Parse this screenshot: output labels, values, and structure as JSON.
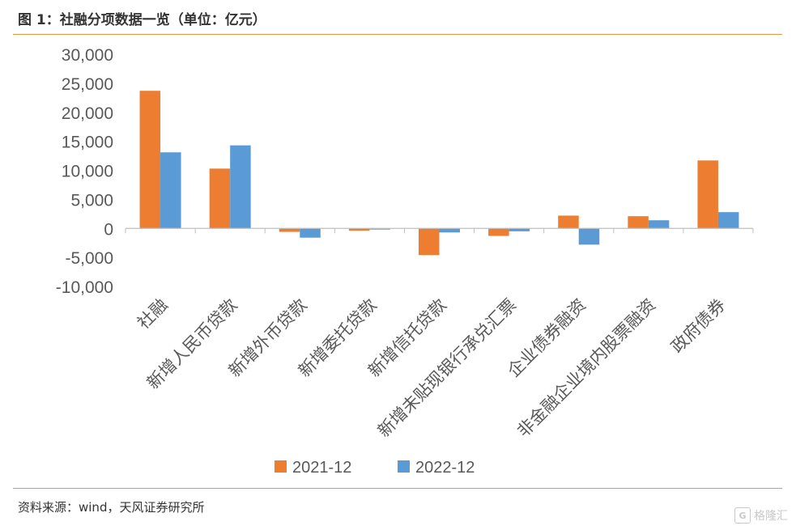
{
  "header": {
    "title": "图 1：社融分项数据一览（单位：亿元）"
  },
  "footer": {
    "source": "资料来源：wind，天风证券研究所"
  },
  "watermark": {
    "icon": "gelonghui-logo",
    "text": "格隆汇"
  },
  "colors": {
    "series_2021": "#ed7d31",
    "series_2022": "#5b9bd5",
    "axis": "#bfbfbf",
    "tick_text": "#595959",
    "rule": "#d99a4a"
  },
  "chart_data": {
    "type": "bar",
    "title": "",
    "xlabel": "",
    "ylabel": "",
    "ylim": [
      -10000,
      30000
    ],
    "yticks": [
      30000,
      25000,
      20000,
      15000,
      10000,
      5000,
      0,
      -5000,
      -10000
    ],
    "ytick_labels": [
      "30,000",
      "25,000",
      "20,000",
      "15,000",
      "10,000",
      "5,000",
      "0",
      "-5,000",
      "-10,000"
    ],
    "grid": false,
    "legend_position": "bottom",
    "categories": [
      "社融",
      "新增人民币贷款",
      "新增外币贷款",
      "新增委托贷款",
      "新增信托贷款",
      "新增未贴现银行承兑汇票",
      "企业债券融资",
      "非金融企业境内股票融资",
      "政府债券"
    ],
    "series": [
      {
        "name": "2021-12",
        "values": [
          23700,
          10300,
          -600,
          -400,
          -4600,
          -1300,
          2200,
          2100,
          11700
        ]
      },
      {
        "name": "2022-12",
        "values": [
          13100,
          14300,
          -1600,
          -200,
          -700,
          -500,
          -2800,
          1400,
          2800
        ]
      }
    ]
  }
}
